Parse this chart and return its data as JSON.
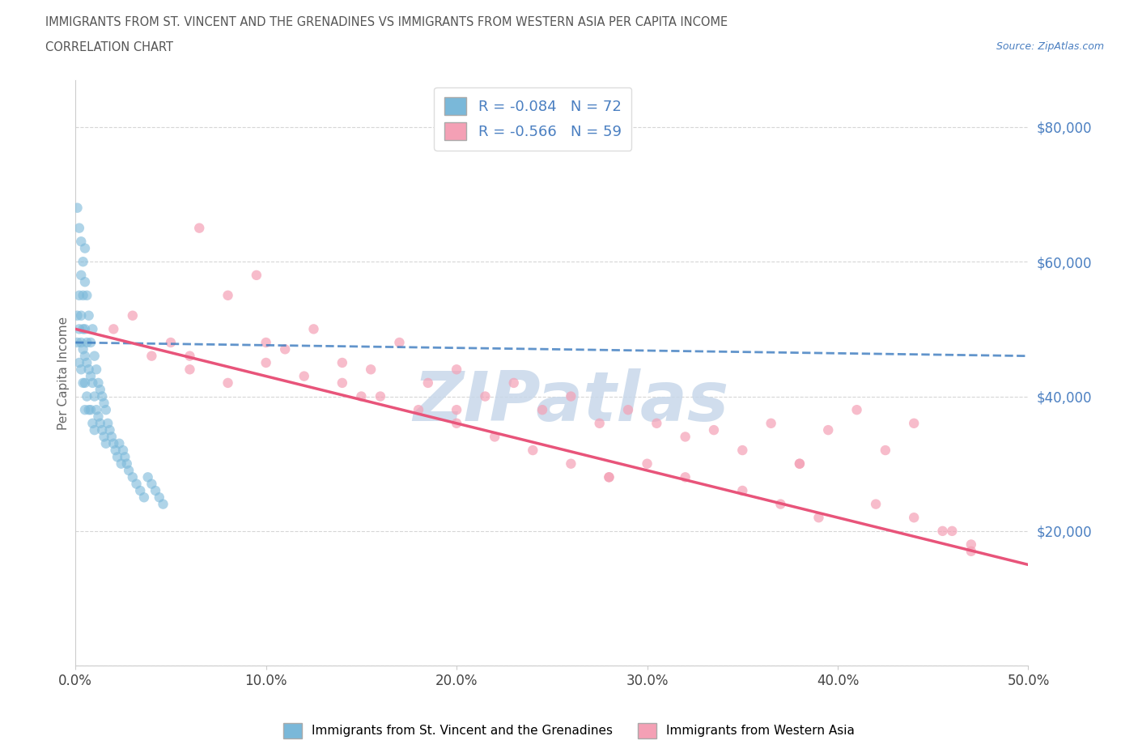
{
  "title_line1": "IMMIGRANTS FROM ST. VINCENT AND THE GRENADINES VS IMMIGRANTS FROM WESTERN ASIA PER CAPITA INCOME",
  "title_line2": "CORRELATION CHART",
  "source_text": "Source: ZipAtlas.com",
  "ylabel": "Per Capita Income",
  "xlim": [
    0.0,
    0.5
  ],
  "ylim": [
    0,
    87000
  ],
  "xticks": [
    0.0,
    0.1,
    0.2,
    0.3,
    0.4,
    0.5
  ],
  "xtick_labels": [
    "0.0%",
    "10.0%",
    "20.0%",
    "30.0%",
    "40.0%",
    "50.0%"
  ],
  "yticks": [
    0,
    20000,
    40000,
    60000,
    80000
  ],
  "ytick_labels": [
    "",
    "$20,000",
    "$40,000",
    "$60,000",
    "$80,000"
  ],
  "blue_scatter_color": "#7ab8d9",
  "pink_scatter_color": "#f4a0b5",
  "blue_line_color": "#3a7abf",
  "pink_line_color": "#e8547a",
  "R_blue": -0.084,
  "N_blue": 72,
  "R_pink": -0.566,
  "N_pink": 59,
  "legend_label_blue": "Immigrants from St. Vincent and the Grenadines",
  "legend_label_pink": "Immigrants from Western Asia",
  "watermark": "ZIPatlas",
  "watermark_color": "#c8d8ea",
  "title_color": "#555555",
  "ytick_color": "#4a7fc1",
  "xtick_color": "#444444",
  "grid_color": "#cccccc",
  "source_color": "#4a7fc1",
  "legend_text_color": "#4a7fc1",
  "blue_x": [
    0.001,
    0.001,
    0.002,
    0.002,
    0.002,
    0.003,
    0.003,
    0.003,
    0.003,
    0.004,
    0.004,
    0.004,
    0.004,
    0.005,
    0.005,
    0.005,
    0.005,
    0.005,
    0.006,
    0.006,
    0.006,
    0.006,
    0.007,
    0.007,
    0.007,
    0.008,
    0.008,
    0.008,
    0.009,
    0.009,
    0.009,
    0.01,
    0.01,
    0.01,
    0.011,
    0.011,
    0.012,
    0.012,
    0.013,
    0.013,
    0.014,
    0.014,
    0.015,
    0.015,
    0.016,
    0.016,
    0.017,
    0.018,
    0.019,
    0.02,
    0.021,
    0.022,
    0.023,
    0.024,
    0.025,
    0.026,
    0.027,
    0.028,
    0.03,
    0.032,
    0.034,
    0.036,
    0.038,
    0.04,
    0.042,
    0.044,
    0.046,
    0.001,
    0.002,
    0.003,
    0.004,
    0.005
  ],
  "blue_y": [
    48000,
    52000,
    50000,
    45000,
    55000,
    48000,
    44000,
    52000,
    58000,
    47000,
    42000,
    50000,
    55000,
    46000,
    42000,
    50000,
    38000,
    62000,
    45000,
    40000,
    48000,
    55000,
    44000,
    38000,
    52000,
    43000,
    38000,
    48000,
    42000,
    36000,
    50000,
    40000,
    35000,
    46000,
    38000,
    44000,
    37000,
    42000,
    36000,
    41000,
    35000,
    40000,
    34000,
    39000,
    33000,
    38000,
    36000,
    35000,
    34000,
    33000,
    32000,
    31000,
    33000,
    30000,
    32000,
    31000,
    30000,
    29000,
    28000,
    27000,
    26000,
    25000,
    28000,
    27000,
    26000,
    25000,
    24000,
    68000,
    65000,
    63000,
    60000,
    57000
  ],
  "pink_x": [
    0.03,
    0.05,
    0.065,
    0.08,
    0.095,
    0.11,
    0.125,
    0.14,
    0.155,
    0.17,
    0.185,
    0.2,
    0.215,
    0.23,
    0.245,
    0.26,
    0.275,
    0.29,
    0.305,
    0.32,
    0.335,
    0.35,
    0.365,
    0.38,
    0.395,
    0.41,
    0.425,
    0.44,
    0.455,
    0.47,
    0.02,
    0.04,
    0.06,
    0.08,
    0.1,
    0.12,
    0.14,
    0.16,
    0.18,
    0.2,
    0.22,
    0.24,
    0.26,
    0.28,
    0.3,
    0.32,
    0.35,
    0.37,
    0.39,
    0.42,
    0.44,
    0.46,
    0.06,
    0.1,
    0.15,
    0.2,
    0.28,
    0.38,
    0.47
  ],
  "pink_y": [
    52000,
    48000,
    65000,
    55000,
    58000,
    47000,
    50000,
    45000,
    44000,
    48000,
    42000,
    44000,
    40000,
    42000,
    38000,
    40000,
    36000,
    38000,
    36000,
    34000,
    35000,
    32000,
    36000,
    30000,
    35000,
    38000,
    32000,
    36000,
    20000,
    17000,
    50000,
    46000,
    44000,
    42000,
    48000,
    43000,
    42000,
    40000,
    38000,
    36000,
    34000,
    32000,
    30000,
    28000,
    30000,
    28000,
    26000,
    24000,
    22000,
    24000,
    22000,
    20000,
    46000,
    45000,
    40000,
    38000,
    28000,
    30000,
    18000
  ]
}
